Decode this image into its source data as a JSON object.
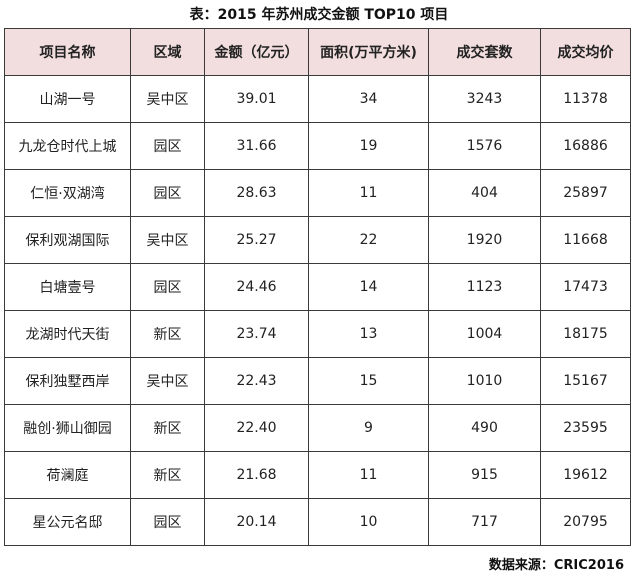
{
  "title": "表：2015 年苏州成交金额 TOP10 项目",
  "table": {
    "headers": [
      "项目名称",
      "区域",
      "金额（亿元）",
      "面积(万平方米)",
      "成交套数",
      "成交均价"
    ],
    "rows": [
      [
        "山湖一号",
        "吴中区",
        "39.01",
        "34",
        "3243",
        "11378"
      ],
      [
        "九龙仓时代上城",
        "园区",
        "31.66",
        "19",
        "1576",
        "16886"
      ],
      [
        "仁恒·双湖湾",
        "园区",
        "28.63",
        "11",
        "404",
        "25897"
      ],
      [
        "保利观湖国际",
        "吴中区",
        "25.27",
        "22",
        "1920",
        "11668"
      ],
      [
        "白塘壹号",
        "园区",
        "24.46",
        "14",
        "1123",
        "17473"
      ],
      [
        "龙湖时代天街",
        "新区",
        "23.74",
        "13",
        "1004",
        "18175"
      ],
      [
        "保利独墅西岸",
        "吴中区",
        "22.43",
        "15",
        "1010",
        "15167"
      ],
      [
        "融创·狮山御园",
        "新区",
        "22.40",
        "9",
        "490",
        "23595"
      ],
      [
        "荷澜庭",
        "新区",
        "21.68",
        "11",
        "915",
        "19612"
      ],
      [
        "星公元名邸",
        "园区",
        "20.14",
        "10",
        "717",
        "20795"
      ]
    ]
  },
  "source": "数据来源：CRIC2016",
  "colors": {
    "header_bg": "#f2dede",
    "border": "#3a3a3a",
    "text": "#222222"
  }
}
